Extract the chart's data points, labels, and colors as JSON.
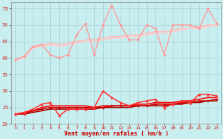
{
  "xlabel": "Vent moyen/en rafales ( km/h )",
  "background_color": "#c8eef0",
  "grid_color": "#b0d8dc",
  "ylim": [
    20,
    57
  ],
  "xlim": [
    -0.5,
    23.5
  ],
  "yticks": [
    20,
    25,
    30,
    35,
    40,
    45,
    50,
    55
  ],
  "xticks": [
    0,
    1,
    2,
    3,
    4,
    5,
    6,
    7,
    8,
    9,
    10,
    11,
    12,
    13,
    14,
    15,
    16,
    17,
    18,
    19,
    20,
    21,
    22,
    23
  ],
  "series": [
    {
      "data": [
        39.5,
        40.5,
        43.5,
        44.0,
        41.0,
        40.0,
        41.0,
        47.0,
        50.5,
        41.0,
        50.0,
        56.0,
        50.0,
        45.5,
        45.5,
        50.0,
        49.0,
        41.0,
        50.0,
        50.0,
        50.0,
        49.0,
        55.0,
        50.5
      ],
      "color": "#ff9999",
      "lw": 1.0,
      "marker": "D",
      "ms": 2.0,
      "zorder": 4
    },
    {
      "data": [
        39.5,
        40.5,
        43.5,
        44.0,
        44.5,
        44.0,
        44.5,
        45.0,
        45.5,
        45.5,
        46.0,
        46.5,
        46.5,
        47.0,
        47.0,
        47.5,
        48.0,
        48.0,
        48.5,
        49.0,
        49.0,
        49.5,
        50.0,
        50.0
      ],
      "color": "#ffbbbb",
      "lw": 1.2,
      "marker": null,
      "ms": 0,
      "zorder": 2
    },
    {
      "data": [
        39.5,
        40.0,
        43.0,
        43.5,
        44.0,
        43.5,
        44.0,
        44.5,
        45.0,
        45.0,
        45.5,
        46.0,
        46.0,
        46.5,
        46.5,
        47.0,
        47.5,
        47.5,
        48.0,
        48.5,
        49.0,
        49.0,
        49.5,
        50.0
      ],
      "color": "#ffcccc",
      "lw": 1.2,
      "marker": null,
      "ms": 0,
      "zorder": 2
    },
    {
      "data": [
        23.0,
        23.5,
        24.5,
        26.0,
        26.5,
        22.5,
        24.5,
        24.5,
        24.5,
        25.0,
        30.0,
        28.0,
        26.5,
        25.5,
        26.5,
        27.0,
        27.5,
        25.0,
        26.0,
        27.0,
        26.5,
        29.0,
        29.0,
        28.5
      ],
      "color": "#ff3333",
      "lw": 1.2,
      "marker": "^",
      "ms": 2.5,
      "zorder": 5
    },
    {
      "data": [
        23.0,
        23.5,
        24.0,
        25.0,
        25.5,
        25.5,
        25.5,
        25.5,
        25.5,
        25.0,
        25.5,
        25.5,
        25.5,
        25.5,
        26.0,
        26.0,
        26.5,
        26.5,
        26.5,
        27.0,
        27.0,
        27.5,
        28.0,
        28.0
      ],
      "color": "#ff0000",
      "lw": 1.2,
      "marker": null,
      "ms": 0,
      "zorder": 3
    },
    {
      "data": [
        23.0,
        23.0,
        24.0,
        24.5,
        25.0,
        25.0,
        25.0,
        25.0,
        25.0,
        25.0,
        25.0,
        25.5,
        25.5,
        25.5,
        25.5,
        25.5,
        26.0,
        26.0,
        26.0,
        26.5,
        26.5,
        27.0,
        27.0,
        27.5
      ],
      "color": "#cc0000",
      "lw": 1.2,
      "marker": "D",
      "ms": 1.8,
      "zorder": 3
    },
    {
      "data": [
        23.0,
        23.0,
        23.5,
        24.0,
        24.5,
        24.5,
        24.5,
        24.5,
        24.5,
        24.5,
        25.0,
        25.0,
        25.0,
        25.0,
        25.5,
        25.5,
        25.5,
        25.5,
        26.0,
        26.0,
        26.5,
        26.5,
        27.0,
        27.0
      ],
      "color": "#aa0000",
      "lw": 1.2,
      "marker": null,
      "ms": 0,
      "zorder": 2
    }
  ]
}
